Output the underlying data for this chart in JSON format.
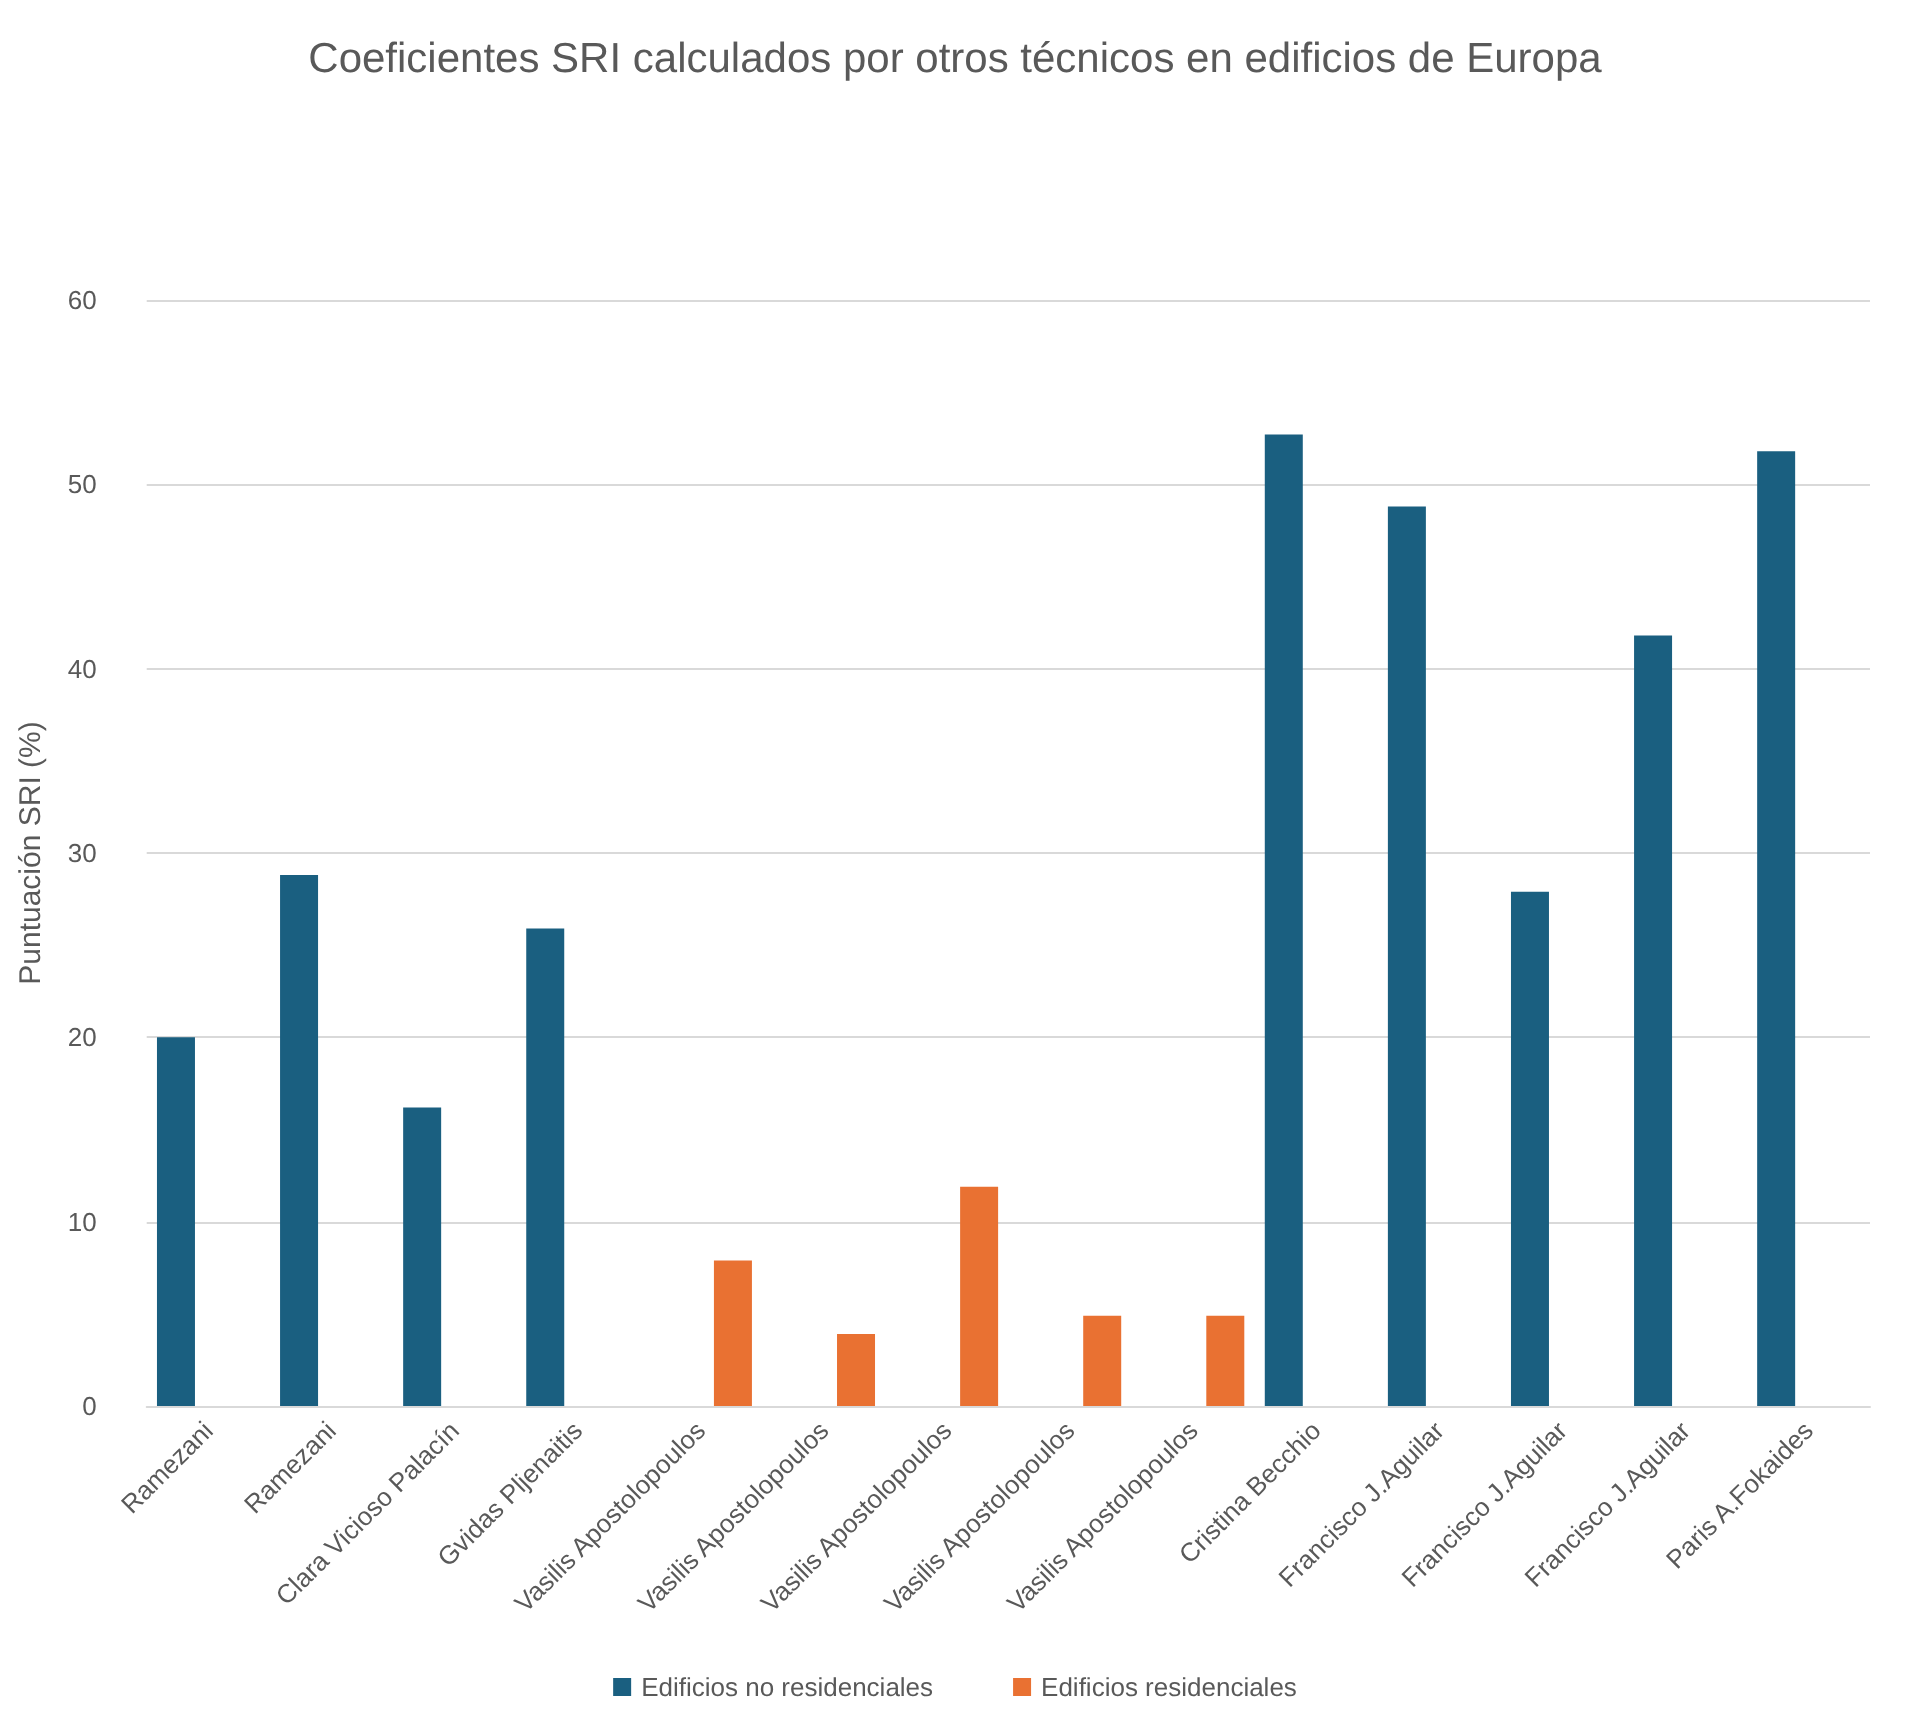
{
  "chart_data": {
    "type": "bar",
    "title": "Coeficientes SRI calculados por otros técnicos en edificios de Europa",
    "ylabel": "Puntuación SRI (%)",
    "categories": [
      "Ramezani",
      "Ramezani",
      "Clara Vicioso Palacín",
      "Gvidas Pljenaitis",
      "Vasilis Apostolopoulos",
      "Vasilis Apostolopoulos",
      "Vasilis Apostolopoulos",
      "Vasilis Apostolopoulos",
      "Vasilis Apostolopoulos",
      "Cristina Becchio",
      "Francisco J.Aguilar",
      "Francisco J.Aguilar",
      "Francisco J.Aguilar",
      "Paris A.Fokaides"
    ],
    "series": [
      {
        "name": "Edificios no residenciales",
        "color": "#1a5f80",
        "values": [
          20,
          28.8,
          16.2,
          25.9,
          null,
          null,
          null,
          null,
          null,
          52.7,
          48.8,
          27.9,
          41.8,
          51.8
        ]
      },
      {
        "name": "Edificios residenciales",
        "color": "#e97132",
        "values": [
          null,
          null,
          null,
          null,
          7.9,
          3.9,
          11.9,
          4.9,
          4.9,
          null,
          null,
          null,
          null,
          null
        ]
      }
    ],
    "ylim": [
      0,
      60
    ],
    "yticks": [
      0,
      10,
      20,
      30,
      40,
      50,
      60
    ],
    "grid": "y",
    "legend": "bottom"
  }
}
